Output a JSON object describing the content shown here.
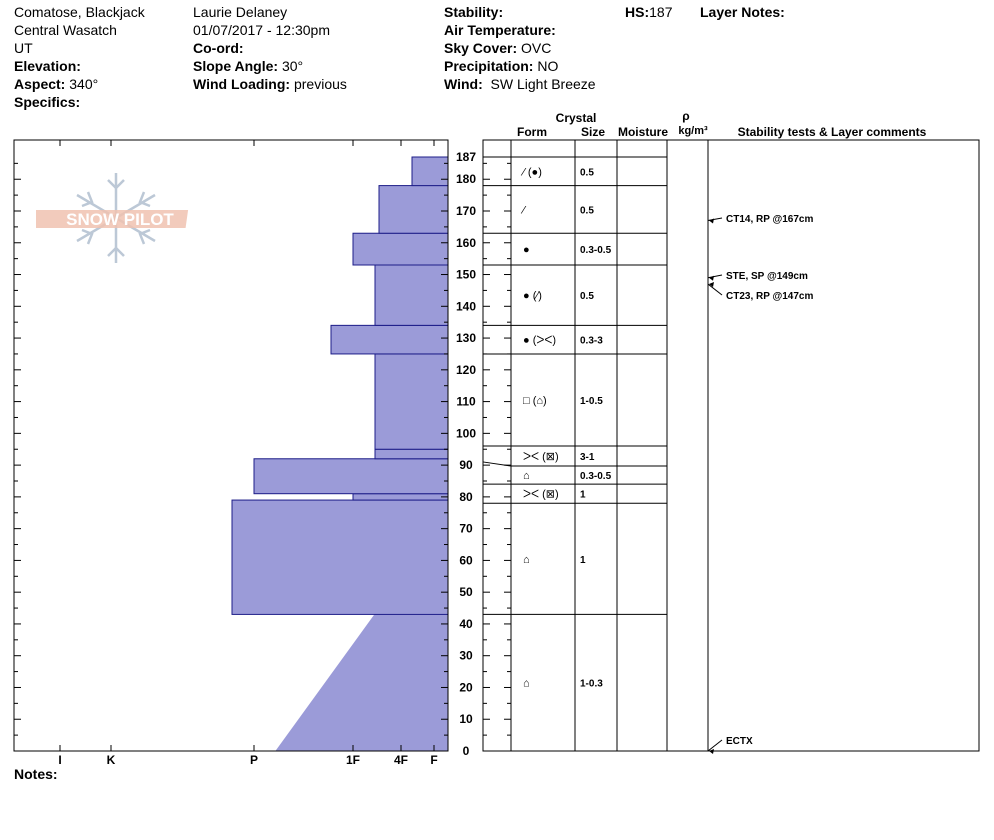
{
  "header": {
    "location": "Comatose, Blackjack",
    "range": "Central Wasatch",
    "state": "UT",
    "elevation_label": "Elevation:",
    "elevation_value": "",
    "aspect_label": "Aspect:",
    "aspect_value": "340°",
    "specifics_label": "Specifics:",
    "observer": "Laurie Delaney",
    "datetime": "01/07/2017 - 12:30pm",
    "coord_label": "Co-ord:",
    "slope_label": "Slope Angle:",
    "slope_value": "30°",
    "wind_loading_label": "Wind Loading:",
    "wind_loading_value": "previous",
    "stability_label": "Stability:",
    "air_temp_label": "Air Temperature:",
    "sky_label": "Sky Cover:",
    "sky_value": "OVC",
    "precip_label": "Precipitation:",
    "precip_value": "NO",
    "wind_label": "Wind:",
    "wind_value": "SW Light Breeze",
    "hs_label": "HS:",
    "hs_value": "187",
    "layer_notes_label": "Layer Notes:"
  },
  "columns": {
    "crystal": "Crystal",
    "form": "Form",
    "size": "Size",
    "moisture": "Moisture",
    "rho": "ρ",
    "density_unit": "kg/m³",
    "stability": "Stability tests & Layer comments"
  },
  "logo_text": "SNOW PILOT",
  "notes_label": "Notes:",
  "chart_data": {
    "type": "snow-profile",
    "hs": 187,
    "y_range": [
      0,
      187
    ],
    "y_ticks": [
      0,
      10,
      20,
      30,
      40,
      50,
      60,
      70,
      80,
      90,
      100,
      110,
      120,
      130,
      140,
      150,
      160,
      170,
      180,
      187
    ],
    "hardness_scale": [
      "I",
      "K",
      "P",
      "1F",
      "4F",
      "F"
    ],
    "hardness_positions": {
      "F": 0,
      "4F": 1,
      "1F": 2,
      "P": 3,
      "K": 4,
      "I": 5
    },
    "hardness_profile": [
      {
        "bottom": 0,
        "top": 43,
        "hardness_bottom": "P-",
        "hardness_top": "1F-"
      },
      {
        "bottom": 43,
        "top": 79,
        "hardness": "P+"
      },
      {
        "bottom": 79,
        "top": 81,
        "hardness": "1F"
      },
      {
        "bottom": 81,
        "top": 92,
        "hardness": "P"
      },
      {
        "bottom": 92,
        "top": 95,
        "hardness": "1F-"
      },
      {
        "bottom": 95,
        "top": 125,
        "hardness": "1F-"
      },
      {
        "bottom": 125,
        "top": 134,
        "hardness": "1F+"
      },
      {
        "bottom": 134,
        "top": 153,
        "hardness": "1F-"
      },
      {
        "bottom": 153,
        "top": 163,
        "hardness": "1F"
      },
      {
        "bottom": 163,
        "top": 178,
        "hardness": "4F+"
      },
      {
        "bottom": 178,
        "top": 187,
        "hardness": "F+"
      }
    ],
    "layers": [
      {
        "top": 187,
        "bottom": 178,
        "form": "⁄ (●)",
        "size": "0.5"
      },
      {
        "top": 178,
        "bottom": 163,
        "form": "⁄",
        "size": "0.5"
      },
      {
        "top": 163,
        "bottom": 153,
        "form": "●",
        "size": "0.3-0.5"
      },
      {
        "top": 153,
        "bottom": 134,
        "form": "● (⁄)",
        "size": "0.5"
      },
      {
        "top": 134,
        "bottom": 125,
        "form": "● (ᐳᐸ)",
        "size": "0.3-3"
      },
      {
        "top": 125,
        "bottom": 96,
        "form": "□ (⌂)",
        "size": "1-0.5"
      },
      {
        "top": 96,
        "bottom": 91,
        "form": "ᐳᐸ (⊠)",
        "size": "3-1"
      },
      {
        "top": 91,
        "bottom": 84,
        "form": "⌂",
        "size": "0.3-0.5"
      },
      {
        "top": 84,
        "bottom": 78,
        "form": "ᐳᐸ (⊠)",
        "size": "1"
      },
      {
        "top": 78,
        "bottom": 43,
        "form": "⌂",
        "size": "1"
      },
      {
        "top": 43,
        "bottom": 0,
        "form": "⌂",
        "size": "1-0.3"
      }
    ],
    "tests": [
      {
        "depth": 167,
        "label": "CT14, RP @167cm"
      },
      {
        "depth": 149,
        "label": "STE, SP @149cm"
      },
      {
        "depth": 147,
        "label": "CT23, RP @147cm"
      },
      {
        "depth": 0,
        "label": "ECTX"
      }
    ]
  },
  "colors": {
    "fill": "#9b9bd8",
    "stroke": "#1c1c88",
    "logo": "#f0c2b0",
    "snowflake": "#bcc8d6"
  }
}
